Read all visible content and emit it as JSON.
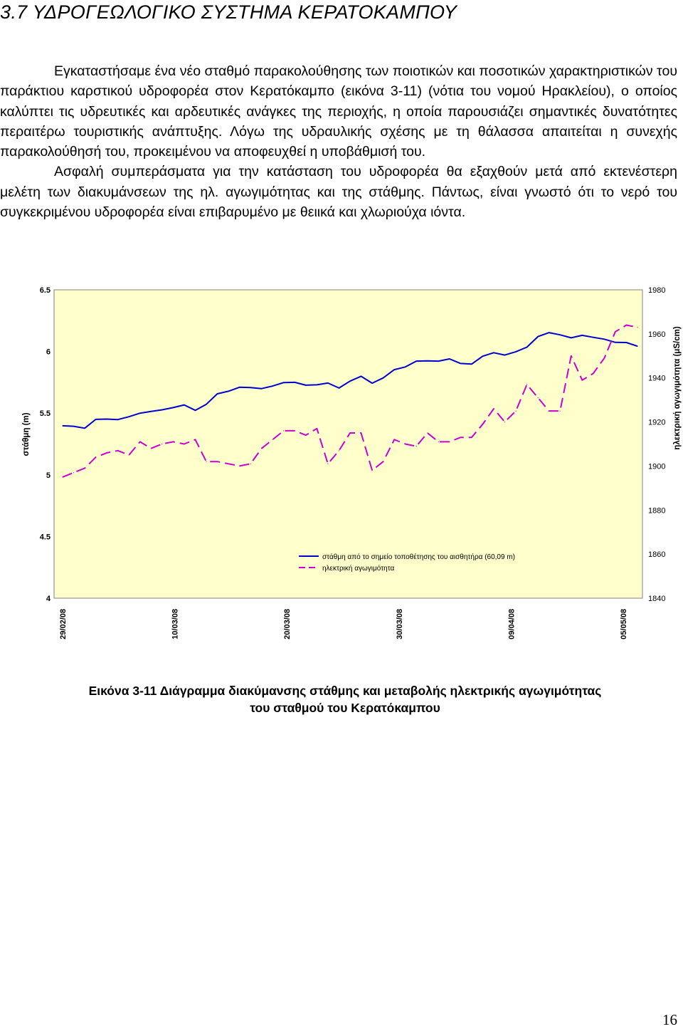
{
  "section_title": "3.7 ΥΔΡΟΓΕΩΛΟΓΙΚΟ ΣΥΣΤΗΜΑ ΚΕΡΑΤΟΚΑΜΠΟΥ",
  "paragraphs": [
    "Εγκαταστήσαμε ένα νέο σταθμό παρακολούθησης των ποιοτικών και ποσοτικών χαρακτηριστικών του παράκτιου καρστικού υδροφορέα στον Κερατόκαμπο (εικόνα 3-11) (νότια του νομού Ηρακλείου), ο οποίος καλύπτει τις υδρευτικές και αρδευτικές ανάγκες της περιοχής, η οποία παρουσιάζει σημαντικές δυνατότητες περαιτέρω τουριστικής ανάπτυξης. Λόγω της υδραυλικής σχέσης με τη θάλασσα απαιτείται η συνεχής παρακολούθησή του, προκειμένου να αποφευχθεί η υποβάθμισή του.",
    "Ασφαλή συμπεράσματα για την κατάσταση του υδροφορέα θα εξαχθούν μετά από εκτενέστερη μελέτη των διακυμάνσεων της ηλ. αγωγιμότητας και της στάθμης. Πάντως, είναι γνωστό ότι το νερό του συγκεκριμένου υδροφορέα είναι επιβαρυμένο με θειικά και χλωριούχα ιόντα."
  ],
  "chart_data": {
    "type": "line",
    "title": "",
    "x_tick_labels": [
      "29/02/08",
      "10/03/08",
      "20/03/08",
      "30/03/08",
      "09/04/08",
      "05/05/08"
    ],
    "ylabel": "στάθμη (m)",
    "ylim": [
      4,
      6.5
    ],
    "y_ticks": [
      "4",
      "4.5",
      "5",
      "5.5",
      "6",
      "6.5"
    ],
    "y2label": "ηλεκτρική αγωγιμότητα (μS/cm)",
    "y2lim": [
      1840,
      1980
    ],
    "y2_ticks": [
      "1840",
      "1860",
      "1880",
      "1900",
      "1920",
      "1940",
      "1960",
      "1980"
    ],
    "legend_position": "bottom-center inside plot",
    "grid": false,
    "plot_background": "#ffffcc",
    "series": [
      {
        "name": "στάθμη από το σημείο τοποθέτησης του αισθητήρα (60,09 m)",
        "axis": "left",
        "color": "#0000cc",
        "style": "solid",
        "values": [
          5.398,
          5.394,
          5.378,
          5.45,
          5.452,
          5.448,
          5.471,
          5.5,
          5.514,
          5.527,
          5.545,
          5.567,
          5.523,
          5.572,
          5.657,
          5.678,
          5.71,
          5.708,
          5.699,
          5.72,
          5.748,
          5.75,
          5.727,
          5.73,
          5.744,
          5.704,
          5.76,
          5.799,
          5.743,
          5.786,
          5.853,
          5.875,
          5.922,
          5.924,
          5.922,
          5.94,
          5.903,
          5.898,
          5.962,
          5.99,
          5.971,
          5.998,
          6.035,
          6.121,
          6.153,
          6.135,
          6.111,
          6.131,
          6.115,
          6.1,
          6.074,
          6.073,
          6.043
        ]
      },
      {
        "name": "ηλεκτρική αγωγιμότητα",
        "axis": "right",
        "color": "#cc00cc",
        "style": "dashed",
        "values": [
          1895,
          1897,
          1899,
          1904,
          1906,
          1907,
          1905,
          1911,
          1908,
          1910,
          1911,
          1910,
          1912,
          1902,
          1902,
          1901,
          1900,
          1901,
          1908,
          1912,
          1916,
          1916,
          1914,
          1917,
          1901,
          1907,
          1915,
          1915,
          1898,
          1902,
          1912,
          1910,
          1909,
          1915,
          1911,
          1911,
          1913,
          1913,
          1919,
          1926,
          1920,
          1925,
          1937,
          1931,
          1925,
          1925,
          1950,
          1939,
          1942,
          1949,
          1961,
          1964,
          1963
        ]
      }
    ]
  },
  "caption_line1": "Εικόνα 3-11 Διάγραμμα διακύμανσης στάθμης και μεταβολής ηλεκτρικής αγωγιμότητας",
  "caption_line2": "του σταθμού του Κερατόκαμπου",
  "page_number": "16"
}
